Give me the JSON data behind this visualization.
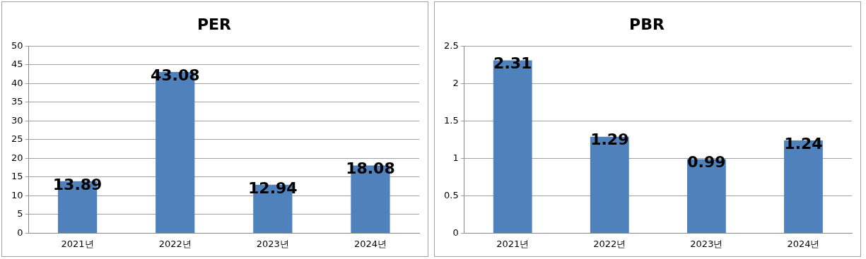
{
  "chart_data": [
    {
      "type": "bar",
      "title": "PER",
      "categories": [
        "2021년",
        "2022년",
        "2023년",
        "2024년"
      ],
      "values": [
        13.89,
        43.08,
        12.94,
        18.08
      ],
      "color": "#4f81bd",
      "ylim": [
        0,
        50
      ],
      "yticks": [
        0,
        5,
        10,
        15,
        20,
        25,
        30,
        35,
        40,
        45,
        50
      ],
      "grid": "y",
      "data_labels": true
    },
    {
      "type": "bar",
      "title": "PBR",
      "categories": [
        "2021년",
        "2022년",
        "2023년",
        "2024년"
      ],
      "values": [
        2.31,
        1.29,
        0.99,
        1.24
      ],
      "color": "#4f81bd",
      "ylim": [
        0,
        2.5
      ],
      "yticks": [
        0,
        0.5,
        1,
        1.5,
        2,
        2.5
      ],
      "grid": "y",
      "data_labels": true
    }
  ]
}
